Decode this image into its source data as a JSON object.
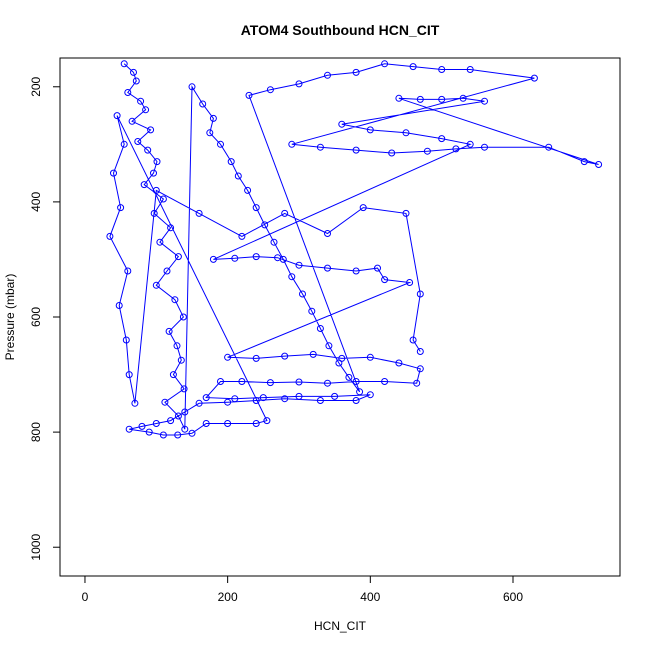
{
  "chart_data": {
    "type": "scatter",
    "title": "ATOM4 Southbound HCN_CIT",
    "xlabel": "HCN_CIT",
    "ylabel": "Pressure (mbar)",
    "xlim": [
      -35,
      750
    ],
    "ylim": [
      1050,
      150
    ],
    "y_reversed": true,
    "x_ticks": [
      0,
      200,
      400,
      600
    ],
    "y_ticks": [
      200,
      400,
      600,
      800,
      1000
    ],
    "marker": "open-circle",
    "connected": true,
    "grid": false,
    "series_color": "#0000ff",
    "series": [
      {
        "points": [
          [
            55,
            160
          ],
          [
            68,
            175
          ],
          [
            72,
            190
          ],
          [
            60,
            210
          ],
          [
            78,
            225
          ],
          [
            85,
            240
          ],
          [
            66,
            260
          ],
          [
            92,
            275
          ],
          [
            74,
            295
          ],
          [
            88,
            310
          ],
          [
            101,
            330
          ],
          [
            96,
            350
          ],
          [
            83,
            370
          ],
          [
            110,
            395
          ],
          [
            97,
            420
          ],
          [
            120,
            445
          ],
          [
            105,
            470
          ],
          [
            131,
            495
          ],
          [
            115,
            520
          ],
          [
            100,
            545
          ],
          [
            126,
            570
          ],
          [
            138,
            600
          ],
          [
            118,
            625
          ],
          [
            129,
            650
          ],
          [
            135,
            675
          ],
          [
            124,
            700
          ],
          [
            139,
            725
          ],
          [
            112,
            748
          ],
          [
            131,
            772
          ],
          [
            140,
            795
          ],
          [
            150,
            200
          ],
          [
            165,
            230
          ],
          [
            180,
            255
          ],
          [
            175,
            280
          ],
          [
            190,
            300
          ],
          [
            205,
            330
          ],
          [
            215,
            355
          ],
          [
            228,
            380
          ],
          [
            240,
            410
          ],
          [
            252,
            440
          ],
          [
            265,
            470
          ],
          [
            278,
            500
          ],
          [
            290,
            530
          ],
          [
            305,
            560
          ],
          [
            318,
            590
          ],
          [
            330,
            620
          ],
          [
            342,
            650
          ],
          [
            356,
            680
          ],
          [
            370,
            705
          ],
          [
            385,
            730
          ],
          [
            230,
            215
          ],
          [
            260,
            205
          ],
          [
            300,
            195
          ],
          [
            340,
            180
          ],
          [
            380,
            175
          ],
          [
            420,
            160
          ],
          [
            460,
            165
          ],
          [
            500,
            170
          ],
          [
            540,
            170
          ],
          [
            630,
            185
          ],
          [
            290,
            300
          ],
          [
            330,
            305
          ],
          [
            380,
            310
          ],
          [
            430,
            315
          ],
          [
            480,
            312
          ],
          [
            520,
            308
          ],
          [
            560,
            305
          ],
          [
            650,
            305
          ],
          [
            700,
            330
          ],
          [
            720,
            335
          ],
          [
            440,
            220
          ],
          [
            470,
            222
          ],
          [
            500,
            222
          ],
          [
            530,
            220
          ],
          [
            560,
            225
          ],
          [
            360,
            265
          ],
          [
            400,
            275
          ],
          [
            450,
            280
          ],
          [
            500,
            290
          ],
          [
            540,
            300
          ],
          [
            180,
            500
          ],
          [
            210,
            498
          ],
          [
            240,
            495
          ],
          [
            270,
            497
          ],
          [
            300,
            510
          ],
          [
            340,
            515
          ],
          [
            380,
            520
          ],
          [
            410,
            515
          ],
          [
            420,
            535
          ],
          [
            455,
            540
          ],
          [
            200,
            670
          ],
          [
            240,
            672
          ],
          [
            280,
            668
          ],
          [
            320,
            665
          ],
          [
            360,
            672
          ],
          [
            400,
            670
          ],
          [
            440,
            680
          ],
          [
            470,
            690
          ],
          [
            465,
            715
          ],
          [
            420,
            712
          ],
          [
            380,
            712
          ],
          [
            340,
            715
          ],
          [
            300,
            713
          ],
          [
            260,
            714
          ],
          [
            220,
            712
          ],
          [
            190,
            712
          ],
          [
            170,
            740
          ],
          [
            210,
            742
          ],
          [
            250,
            740
          ],
          [
            300,
            738
          ],
          [
            350,
            738
          ],
          [
            400,
            735
          ],
          [
            380,
            745
          ],
          [
            330,
            745
          ],
          [
            280,
            742
          ],
          [
            240,
            745
          ],
          [
            200,
            748
          ],
          [
            160,
            750
          ],
          [
            140,
            765
          ],
          [
            120,
            780
          ],
          [
            100,
            785
          ],
          [
            80,
            790
          ],
          [
            62,
            795
          ],
          [
            90,
            800
          ],
          [
            110,
            805
          ],
          [
            130,
            805
          ],
          [
            150,
            802
          ],
          [
            170,
            785
          ],
          [
            200,
            785
          ],
          [
            240,
            785
          ],
          [
            255,
            780
          ],
          [
            45,
            250
          ],
          [
            55,
            300
          ],
          [
            40,
            350
          ],
          [
            50,
            410
          ],
          [
            35,
            460
          ],
          [
            60,
            520
          ],
          [
            48,
            580
          ],
          [
            58,
            640
          ],
          [
            62,
            700
          ],
          [
            70,
            750
          ],
          [
            100,
            380
          ],
          [
            160,
            420
          ],
          [
            220,
            460
          ],
          [
            280,
            420
          ],
          [
            340,
            455
          ],
          [
            390,
            410
          ],
          [
            450,
            420
          ],
          [
            470,
            560
          ],
          [
            460,
            640
          ],
          [
            470,
            660
          ]
        ]
      }
    ]
  }
}
